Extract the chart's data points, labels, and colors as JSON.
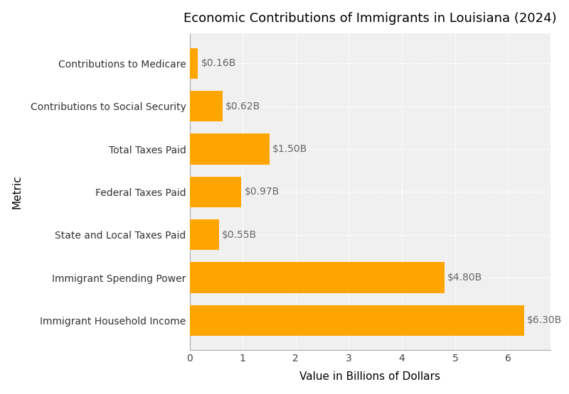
{
  "title": "Economic Contributions of Immigrants in Louisiana (2024)",
  "xlabel": "Value in Billions of Dollars",
  "ylabel": "Metric",
  "categories": [
    "Immigrant Household Income",
    "Immigrant Spending Power",
    "State and Local Taxes Paid",
    "Federal Taxes Paid",
    "Total Taxes Paid",
    "Contributions to Social Security",
    "Contributions to Medicare"
  ],
  "values": [
    6.3,
    4.8,
    0.55,
    0.97,
    1.5,
    0.62,
    0.16
  ],
  "labels": [
    "$6.30B",
    "$4.80B",
    "$0.55B",
    "$0.97B",
    "$1.50B",
    "$0.62B",
    "$0.16B"
  ],
  "bar_color": "#FFA500",
  "background_color": "#FFFFFF",
  "axes_background_color": "#F0F0F0",
  "xlim": [
    0,
    6.8
  ],
  "grid_color": "#FFFFFF",
  "label_color": "#666666",
  "title_fontsize": 13,
  "axis_label_fontsize": 11,
  "tick_fontsize": 10,
  "bar_label_fontsize": 10,
  "bar_height": 0.72
}
